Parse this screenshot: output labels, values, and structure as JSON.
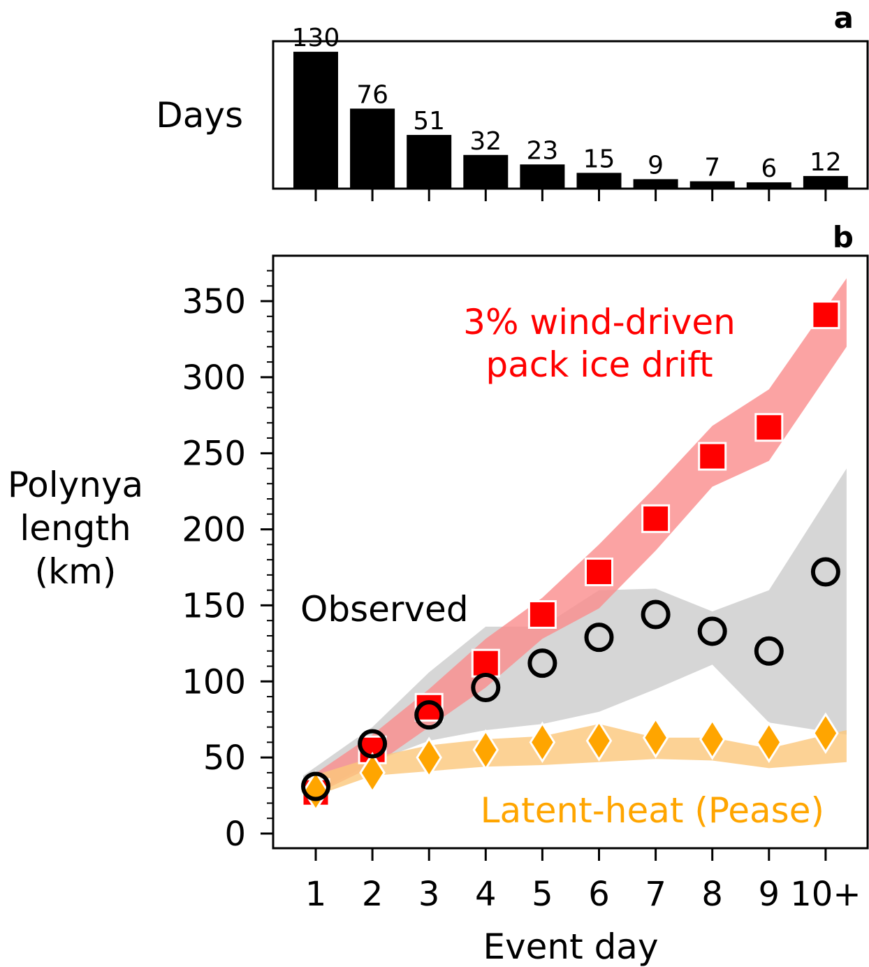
{
  "chart_data": [
    {
      "panel_label": "a",
      "type": "bar",
      "ylabel": "Days",
      "categories": [
        "1",
        "2",
        "3",
        "4",
        "5",
        "6",
        "7",
        "8",
        "9",
        "10+"
      ],
      "values": [
        130,
        76,
        51,
        32,
        23,
        15,
        9,
        7,
        6,
        12
      ],
      "value_labels": [
        "130",
        "76",
        "51",
        "32",
        "23",
        "15",
        "9",
        "7",
        "6",
        "12"
      ],
      "ylim": [
        0,
        140
      ],
      "bar_color": "#000000"
    },
    {
      "panel_label": "b",
      "type": "scatter",
      "xlabel": "Event day",
      "ylabel_lines": [
        "Polynya",
        "length",
        "(km)"
      ],
      "categories": [
        "1",
        "2",
        "3",
        "4",
        "5",
        "6",
        "7",
        "8",
        "9",
        "10+"
      ],
      "ylim": [
        -10,
        380
      ],
      "yticks": [
        0,
        50,
        100,
        150,
        200,
        250,
        300,
        350
      ],
      "ytick_labels": [
        "0",
        "50",
        "100",
        "150",
        "200",
        "250",
        "300",
        "350"
      ],
      "series": [
        {
          "label": "Observed",
          "marker": "circle",
          "color": "#000000",
          "band_color": "#d6d6d6",
          "values": [
            31,
            59,
            78,
            96,
            112,
            129,
            144,
            133,
            120,
            172
          ],
          "band_upper": [
            38,
            70,
            106,
            136,
            136,
            160,
            161,
            146,
            160,
            240
          ],
          "band_lower": [
            22,
            47,
            61,
            68,
            72,
            80,
            95,
            111,
            73,
            65
          ]
        },
        {
          "label": "3% wind-driven\npack ice drift",
          "label_lines": [
            "3% wind-driven",
            "pack ice drift"
          ],
          "marker": "square",
          "color": "#ff0000",
          "band_color": "#fa8c8c",
          "values": [
            27,
            55,
            83,
            112,
            144,
            172,
            207,
            248,
            267,
            341
          ],
          "band_upper": [
            34,
            65,
            95,
            128,
            155,
            190,
            228,
            268,
            292,
            365
          ],
          "band_lower": [
            22,
            44,
            70,
            96,
            128,
            148,
            186,
            228,
            245,
            320
          ]
        },
        {
          "label": "Latent-heat (Pease)",
          "marker": "diamond",
          "color": "#ffa500",
          "band_color": "#fbc77a",
          "values": [
            28,
            40,
            50,
            55,
            60,
            61,
            63,
            62,
            60,
            66
          ],
          "band_upper": [
            36,
            50,
            58,
            62,
            64,
            72,
            63,
            63,
            56,
            68
          ],
          "band_lower": [
            22,
            38,
            41,
            44,
            45,
            47,
            49,
            48,
            43,
            47
          ]
        }
      ]
    }
  ]
}
